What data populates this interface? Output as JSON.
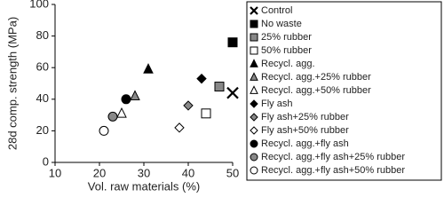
{
  "chart_data": {
    "type": "scatter",
    "x_label": "Vol. raw materials (%)",
    "y_label": "28d comp. strength (MPa)",
    "xlim": [
      10,
      50
    ],
    "xticks": [
      10,
      20,
      30,
      40,
      50
    ],
    "ylim": [
      0,
      100
    ],
    "yticks": [
      0,
      20,
      40,
      60,
      80,
      100
    ],
    "legend": "right",
    "series": [
      {
        "name": "Control",
        "marker": "x",
        "color": "#000000",
        "x": [
          50
        ],
        "values": [
          44
        ]
      },
      {
        "name": "No waste",
        "marker": "square",
        "color": "#000000",
        "x": [
          50
        ],
        "values": [
          76
        ]
      },
      {
        "name": "25% rubber",
        "marker": "square",
        "color": "#888888",
        "x": [
          47
        ],
        "values": [
          48
        ]
      },
      {
        "name": "50% rubber",
        "marker": "square",
        "color": "#ffffff",
        "x": [
          44
        ],
        "values": [
          31
        ]
      },
      {
        "name": "Recycl. agg.",
        "marker": "triangle",
        "color": "#000000",
        "x": [
          31
        ],
        "values": [
          59
        ]
      },
      {
        "name": "Recycl. agg.+25% rubber",
        "marker": "triangle",
        "color": "#888888",
        "x": [
          28
        ],
        "values": [
          42
        ]
      },
      {
        "name": "Recycl. agg.+50% rubber",
        "marker": "triangle",
        "color": "#ffffff",
        "x": [
          25
        ],
        "values": [
          31
        ]
      },
      {
        "name": "Fly ash",
        "marker": "diamond",
        "color": "#000000",
        "x": [
          43
        ],
        "values": [
          53
        ]
      },
      {
        "name": "Fly ash+25% rubber",
        "marker": "diamond",
        "color": "#888888",
        "x": [
          40
        ],
        "values": [
          36
        ]
      },
      {
        "name": "Fly ash+50% rubber",
        "marker": "diamond",
        "color": "#ffffff",
        "x": [
          38
        ],
        "values": [
          22
        ]
      },
      {
        "name": "Recycl. agg.+fly ash",
        "marker": "circle",
        "color": "#000000",
        "x": [
          26
        ],
        "values": [
          40
        ]
      },
      {
        "name": "Recycl. agg.+fly ash+25% rubber",
        "marker": "circle",
        "color": "#888888",
        "x": [
          23
        ],
        "values": [
          29
        ]
      },
      {
        "name": "Recycl. agg.+fly ash+50% rubber",
        "marker": "circle",
        "color": "#ffffff",
        "x": [
          21
        ],
        "values": [
          20
        ]
      }
    ]
  }
}
